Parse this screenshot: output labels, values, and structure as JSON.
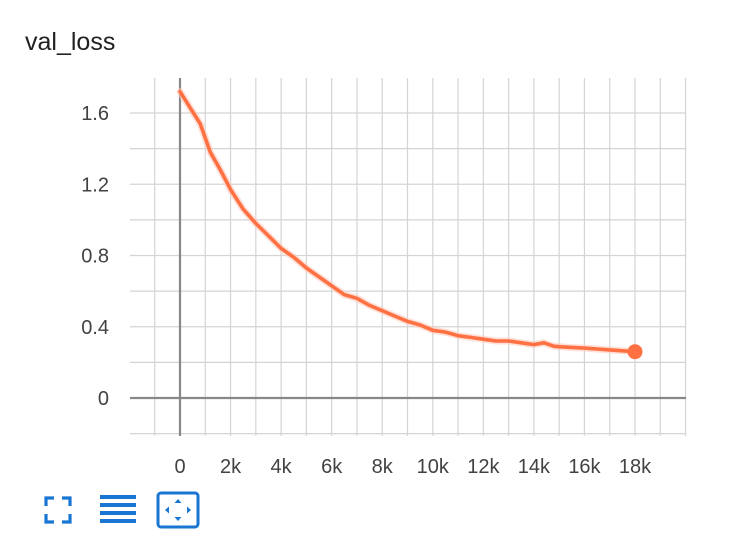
{
  "card": {
    "title": "val_loss"
  },
  "colors": {
    "series": "#ff7043",
    "series_shadow": "#ffccbc",
    "grid": "#d4d4d4",
    "axis": "#888888",
    "text": "#424242",
    "toolbar_icon": "#1976d2"
  },
  "toolbar": {
    "buttons": [
      {
        "icon": "fullscreen-icon"
      },
      {
        "icon": "toggle-log-scale-icon"
      },
      {
        "icon": "fit-domain-icon"
      }
    ]
  },
  "chart_data": {
    "type": "line",
    "title": "val_loss",
    "xlabel": "",
    "ylabel": "",
    "xlim": [
      -1000,
      20000
    ],
    "ylim": [
      -0.2,
      1.8
    ],
    "x_ticks": [
      0,
      2000,
      4000,
      6000,
      8000,
      10000,
      12000,
      14000,
      16000,
      18000
    ],
    "x_tick_labels": [
      "0",
      "2k",
      "4k",
      "6k",
      "8k",
      "10k",
      "12k",
      "14k",
      "16k",
      "18k"
    ],
    "y_ticks": [
      0,
      0.4,
      0.8,
      1.2,
      1.6
    ],
    "y_tick_labels": [
      "0",
      "0.4",
      "0.8",
      "1.2",
      "1.6"
    ],
    "grid": true,
    "legend": "none",
    "series": [
      {
        "color": "#ff7043",
        "x": [
          0,
          400,
          800,
          1200,
          1600,
          2000,
          2500,
          3000,
          3500,
          4000,
          4500,
          5000,
          5500,
          6000,
          6500,
          7000,
          7500,
          8000,
          8500,
          9000,
          9500,
          10000,
          10500,
          11000,
          11500,
          12000,
          12500,
          13000,
          13500,
          14000,
          14400,
          14800,
          15300,
          16000,
          16500,
          17000,
          17500,
          18000
        ],
        "y": [
          1.72,
          1.63,
          1.54,
          1.38,
          1.28,
          1.17,
          1.06,
          0.98,
          0.91,
          0.84,
          0.79,
          0.73,
          0.68,
          0.63,
          0.58,
          0.56,
          0.52,
          0.49,
          0.46,
          0.43,
          0.41,
          0.38,
          0.37,
          0.35,
          0.34,
          0.33,
          0.32,
          0.32,
          0.31,
          0.3,
          0.31,
          0.29,
          0.285,
          0.28,
          0.275,
          0.27,
          0.265,
          0.26
        ]
      }
    ],
    "highlighted_point": {
      "x": 18000,
      "y": 0.26
    }
  }
}
